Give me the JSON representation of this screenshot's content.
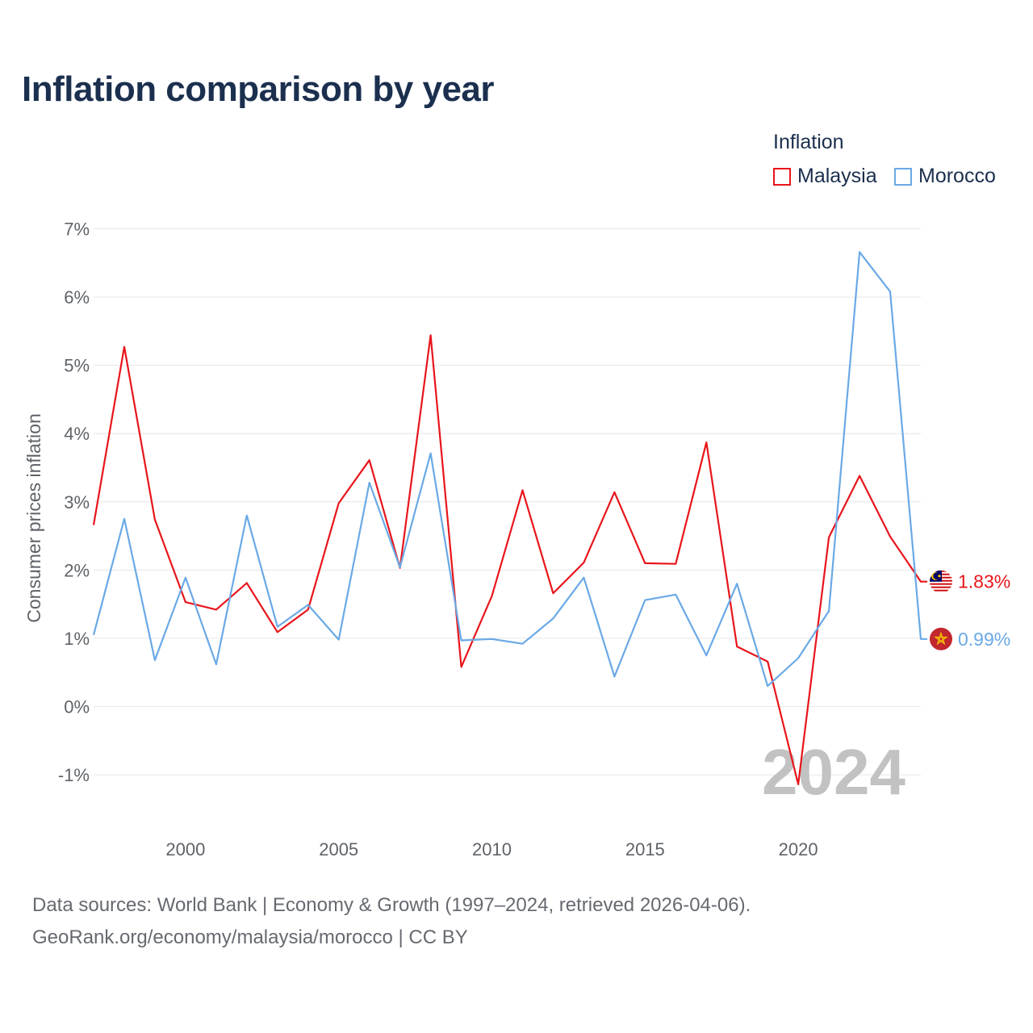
{
  "title": "Inflation comparison by year",
  "legend": {
    "title": "Inflation",
    "items": [
      {
        "label": "Malaysia",
        "color": "#e8151b"
      },
      {
        "label": "Morocco",
        "color": "#6aa9e6"
      }
    ]
  },
  "footer": {
    "line1": "Data sources: World Bank | Economy & Growth (1997–2024, retrieved 2026-04-06).",
    "line2": "GeoRank.org/economy/malaysia/morocco | CC BY"
  },
  "chart_data": {
    "type": "line",
    "title": "Inflation comparison by year",
    "ylabel": "Consumer prices inflation",
    "xlabel": "",
    "watermark": "2024",
    "xlim": [
      1997,
      2024
    ],
    "ylim": [
      -1.5,
      7
    ],
    "y_ticks": [
      -1,
      0,
      1,
      2,
      3,
      4,
      5,
      6,
      7
    ],
    "y_tick_labels": [
      "-1%",
      "0%",
      "1%",
      "2%",
      "3%",
      "4%",
      "5%",
      "6%",
      "7%"
    ],
    "x_ticks": [
      2000,
      2005,
      2010,
      2015,
      2020
    ],
    "x_tick_labels": [
      "2000",
      "2005",
      "2010",
      "2015",
      "2020"
    ],
    "grid": true,
    "x": [
      1997,
      1998,
      1999,
      2000,
      2001,
      2002,
      2003,
      2004,
      2005,
      2006,
      2007,
      2008,
      2009,
      2010,
      2011,
      2012,
      2013,
      2014,
      2015,
      2016,
      2017,
      2018,
      2019,
      2020,
      2021,
      2022,
      2023,
      2024
    ],
    "series": [
      {
        "name": "Malaysia",
        "color": "#e8151b",
        "end_label": "1.83%",
        "flag": "malaysia-flag-icon",
        "values": [
          2.66,
          5.27,
          2.74,
          1.53,
          1.42,
          1.81,
          1.09,
          1.42,
          2.98,
          3.61,
          2.03,
          5.44,
          0.58,
          1.62,
          3.17,
          1.66,
          2.11,
          3.14,
          2.1,
          2.09,
          3.87,
          0.88,
          0.66,
          -1.14,
          2.48,
          3.38,
          2.49,
          1.83
        ]
      },
      {
        "name": "Morocco",
        "color": "#6aa9e6",
        "end_label": "0.99%",
        "flag": "morocco-flag-icon",
        "values": [
          1.05,
          2.75,
          0.68,
          1.89,
          0.62,
          2.8,
          1.17,
          1.49,
          0.98,
          3.28,
          2.04,
          3.71,
          0.97,
          0.99,
          0.92,
          1.29,
          1.89,
          0.44,
          1.56,
          1.64,
          0.75,
          1.8,
          0.3,
          0.71,
          1.4,
          6.66,
          6.08,
          0.99
        ]
      }
    ]
  }
}
